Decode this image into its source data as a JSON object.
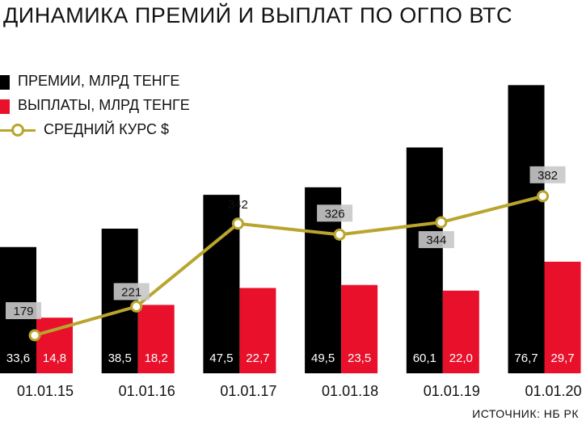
{
  "title": "ДИНАМИКА ПРЕМИЙ И ВЫПЛАТ ПО ОГПО ВТС",
  "source": "ИСТОЧНИК: НБ РК",
  "colors": {
    "premiums": "#000000",
    "payouts": "#e8102a",
    "rate": "#b9a52e"
  },
  "legend": {
    "premiums": "ПРЕМИИ, МЛРД ТЕНГЕ",
    "payouts": "ВЫПЛАТЫ, МЛРД ТЕНГЕ",
    "rate": "СРЕДНИЙ КУРС $"
  },
  "chart_data": {
    "type": "bar",
    "title": "ДИНАМИКА ПРЕМИЙ И ВЫПЛАТ ПО ОГПО ВТС",
    "categories": [
      "01.01.15",
      "01.01.16",
      "01.01.17",
      "01.01.18",
      "01.01.19",
      "01.01.20"
    ],
    "series": [
      {
        "name": "ПРЕМИИ, МЛРД ТЕНГЕ",
        "type": "bar",
        "values": [
          33.6,
          38.5,
          47.5,
          49.5,
          60.1,
          76.7
        ],
        "labels": [
          "33,6",
          "38,5",
          "47,5",
          "49,5",
          "60,1",
          "76,7"
        ]
      },
      {
        "name": "ВЫПЛАТЫ, МЛРД ТЕНГЕ",
        "type": "bar",
        "values": [
          14.8,
          18.2,
          22.7,
          23.5,
          22.0,
          29.7
        ],
        "labels": [
          "14,8",
          "18,2",
          "22,7",
          "23,5",
          "22,0",
          "29,7"
        ]
      },
      {
        "name": "СРЕДНИЙ КУРС $",
        "type": "line",
        "values": [
          179,
          221,
          342,
          326,
          344,
          382
        ],
        "labels": [
          "179",
          "221",
          "342",
          "326",
          "344",
          "382"
        ]
      }
    ],
    "grid": false,
    "legend_position": "top-left"
  }
}
